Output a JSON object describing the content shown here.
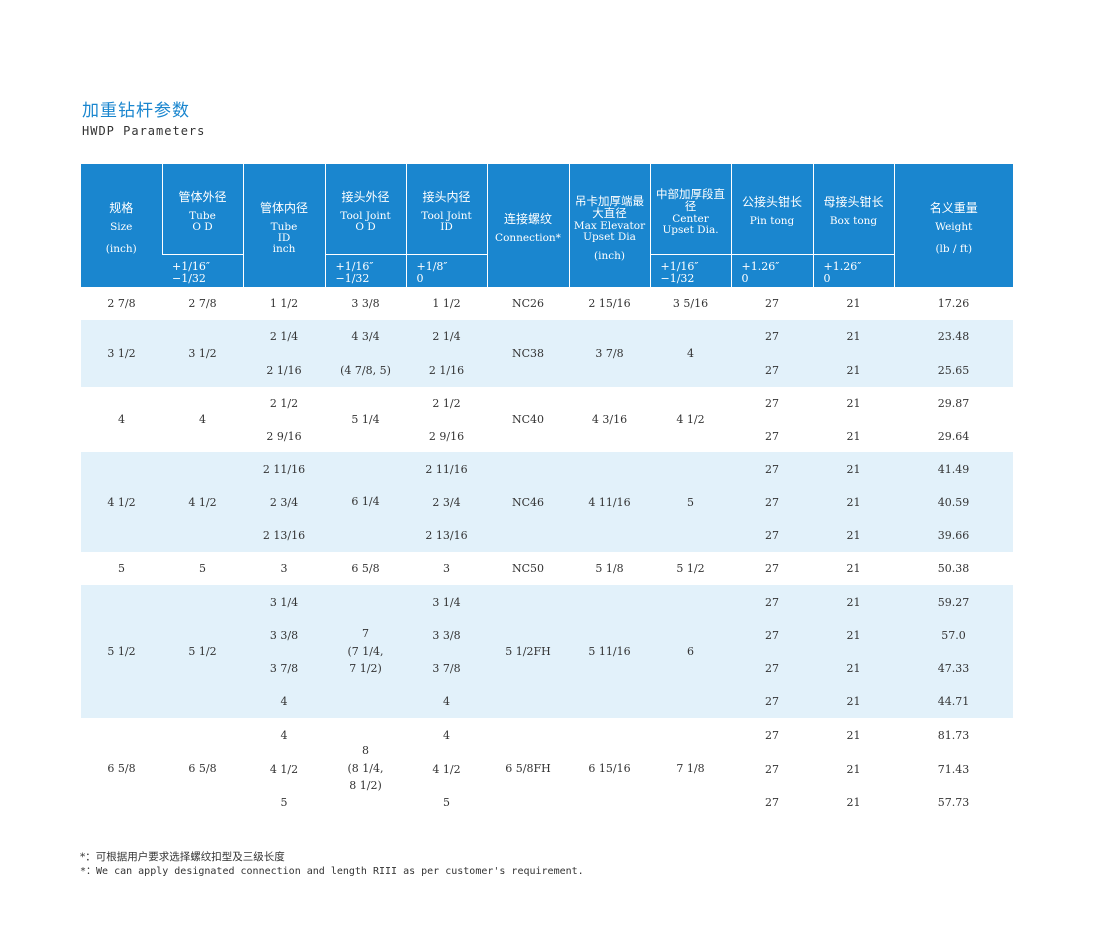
{
  "title_zh": "加重钻杆参数",
  "title_en": "HWDP Parameters",
  "headers": [
    {
      "zh": "规格",
      "en": [
        "Size"
      ],
      "unit": "(inch)",
      "tol": ""
    },
    {
      "zh": "管体外径",
      "en": [
        "Tube",
        "O D"
      ],
      "unit": "",
      "tol": [
        "+1/16″",
        "−1/32"
      ]
    },
    {
      "zh": "管体内径",
      "en": [
        "Tube",
        "ID",
        "inch"
      ],
      "unit": "",
      "tol": ""
    },
    {
      "zh": "接头外径",
      "en": [
        "Tool Joint",
        "O D"
      ],
      "unit": "",
      "tol": [
        "+1/16″",
        "−1/32"
      ]
    },
    {
      "zh": "接头内径",
      "en": [
        "Tool Joint",
        "ID"
      ],
      "unit": "",
      "tol": [
        "+1/8″",
        "0"
      ]
    },
    {
      "zh": "连接螺纹",
      "en": [
        "Connection*"
      ],
      "unit": "",
      "tol": ""
    },
    {
      "zh": "吊卡加厚端最大直径",
      "en": [
        "Max Elevator",
        "Upset Dia"
      ],
      "unit": "(inch)",
      "tol": ""
    },
    {
      "zh": "中部加厚段直径",
      "en": [
        "Center",
        "Upset Dia."
      ],
      "unit": "",
      "tol": [
        "+1/16″",
        "−1/32"
      ]
    },
    {
      "zh": "公接头钳长",
      "en": [
        "Pin tong"
      ],
      "unit": "",
      "tol": [
        "+1.26″",
        "0"
      ]
    },
    {
      "zh": "母接头钳长",
      "en": [
        "Box tong"
      ],
      "unit": "",
      "tol": [
        "+1.26″",
        "0"
      ]
    },
    {
      "zh": "名义重量",
      "en": [
        "Weight"
      ],
      "unit": "(lb / ft)",
      "tol": ""
    }
  ],
  "groups": [
    {
      "size": "2 7/8",
      "tube_od": "2 7/8",
      "tool_od": "3 3/8",
      "conn": "NC26",
      "elevator": "2 15/16",
      "center": "3 5/16",
      "rows": [
        {
          "tube_id": "1 1/2",
          "tool_id": "1 1/2",
          "pin": "27",
          "box": "21",
          "weight": "17.26"
        }
      ]
    },
    {
      "size": "3 1/2",
      "tube_od": "3 1/2",
      "tool_od": "",
      "conn": "NC38",
      "elevator": "3 7/8",
      "center": "4",
      "rows": [
        {
          "tube_id": "2 1/4",
          "tool_od": "4 3/4",
          "tool_id": "2 1/4",
          "pin": "27",
          "box": "21",
          "weight": "23.48"
        },
        {
          "tube_id": "2 1/16",
          "tool_od": "(4 7/8, 5)",
          "tool_id": "2 1/16",
          "pin": "27",
          "box": "21",
          "weight": "25.65"
        }
      ]
    },
    {
      "size": "4",
      "tube_od": "4",
      "tool_od": "5 1/4",
      "conn": "NC40",
      "elevator": "4 3/16",
      "center": "4 1/2",
      "rows": [
        {
          "tube_id": "2 1/2",
          "tool_id": "2 1/2",
          "pin": "27",
          "box": "21",
          "weight": "29.87"
        },
        {
          "tube_id": "2 9/16",
          "tool_id": "2 9/16",
          "pin": "27",
          "box": "21",
          "weight": "29.64"
        }
      ]
    },
    {
      "size": "4 1/2",
      "tube_od": "4 1/2",
      "tool_od": "6 1/4",
      "conn": "NC46",
      "elevator": "4 11/16",
      "center": "5",
      "rows": [
        {
          "tube_id": "2 11/16",
          "tool_id": "2 11/16",
          "pin": "27",
          "box": "21",
          "weight": "41.49"
        },
        {
          "tube_id": "2 3/4",
          "tool_id": "2 3/4",
          "pin": "27",
          "box": "21",
          "weight": "40.59"
        },
        {
          "tube_id": "2 13/16",
          "tool_id": "2 13/16",
          "pin": "27",
          "box": "21",
          "weight": "39.66"
        }
      ]
    },
    {
      "size": "5",
      "tube_od": "5",
      "tool_od": "6 5/8",
      "conn": "NC50",
      "elevator": "5 1/8",
      "center": "5 1/2",
      "rows": [
        {
          "tube_id": "3",
          "tool_id": "3",
          "pin": "27",
          "box": "21",
          "weight": "50.38"
        }
      ]
    },
    {
      "size": "5 1/2",
      "tube_od": "5 1/2",
      "tool_od": "7\n(7 1/4,\n7 1/2)",
      "conn": "5 1/2FH",
      "elevator": "5 11/16",
      "center": "6",
      "rows": [
        {
          "tube_id": "3 1/4",
          "tool_id": "3 1/4",
          "pin": "27",
          "box": "21",
          "weight": "59.27"
        },
        {
          "tube_id": "3 3/8",
          "tool_id": "3 3/8",
          "pin": "27",
          "box": "21",
          "weight": "57.0"
        },
        {
          "tube_id": "3 7/8",
          "tool_id": "3 7/8",
          "pin": "27",
          "box": "21",
          "weight": "47.33"
        },
        {
          "tube_id": "4",
          "tool_id": "4",
          "pin": "27",
          "box": "21",
          "weight": "44.71"
        }
      ]
    },
    {
      "size": "6 5/8",
      "tube_od": "6 5/8",
      "tool_od": "8\n(8 1/4,\n8 1/2)",
      "conn": "6 5/8FH",
      "elevator": "6 15/16",
      "center": "7 1/8",
      "rows": [
        {
          "tube_id": "4",
          "tool_id": "4",
          "pin": "27",
          "box": "21",
          "weight": "81.73"
        },
        {
          "tube_id": "4 1/2",
          "tool_id": "4 1/2",
          "pin": "27",
          "box": "21",
          "weight": "71.43"
        },
        {
          "tube_id": "5",
          "tool_id": "5",
          "pin": "27",
          "box": "21",
          "weight": "57.73"
        }
      ]
    }
  ],
  "note_zh": "*：可根据用户要求选择螺纹扣型及三级长度",
  "note_en": "*：We can apply designated connection and length RIII as per customer's requirement.",
  "colors": {
    "header_bg": "#1a86cf",
    "stripe_bg": "#e2f1fa",
    "title": "#1a86cf"
  }
}
